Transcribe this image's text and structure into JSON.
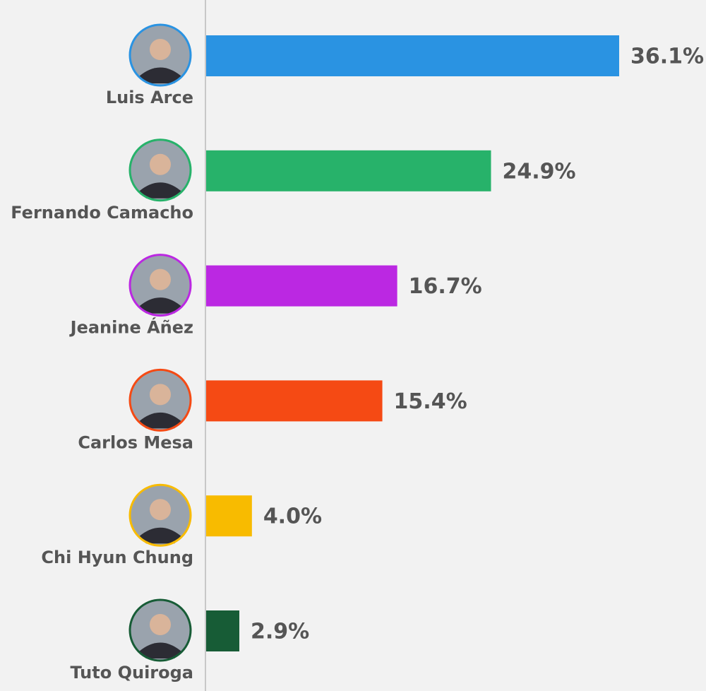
{
  "chart_data": {
    "type": "bar",
    "orientation": "horizontal",
    "categories": [
      "Luis Arce",
      "Fernando Camacho",
      "Jeanine Áñez",
      "Carlos Mesa",
      "Chi Hyun Chung",
      "Tuto Quiroga"
    ],
    "values": [
      36.1,
      24.9,
      16.7,
      15.4,
      4.0,
      2.9
    ],
    "value_labels": [
      "36.1%",
      "24.9%",
      "16.7%",
      "15.4%",
      "4.0%",
      "2.9%"
    ],
    "colors": [
      "#2a93e2",
      "#27b26a",
      "#bb28e2",
      "#f54a14",
      "#f8bb00",
      "#175c36"
    ]
  }
}
